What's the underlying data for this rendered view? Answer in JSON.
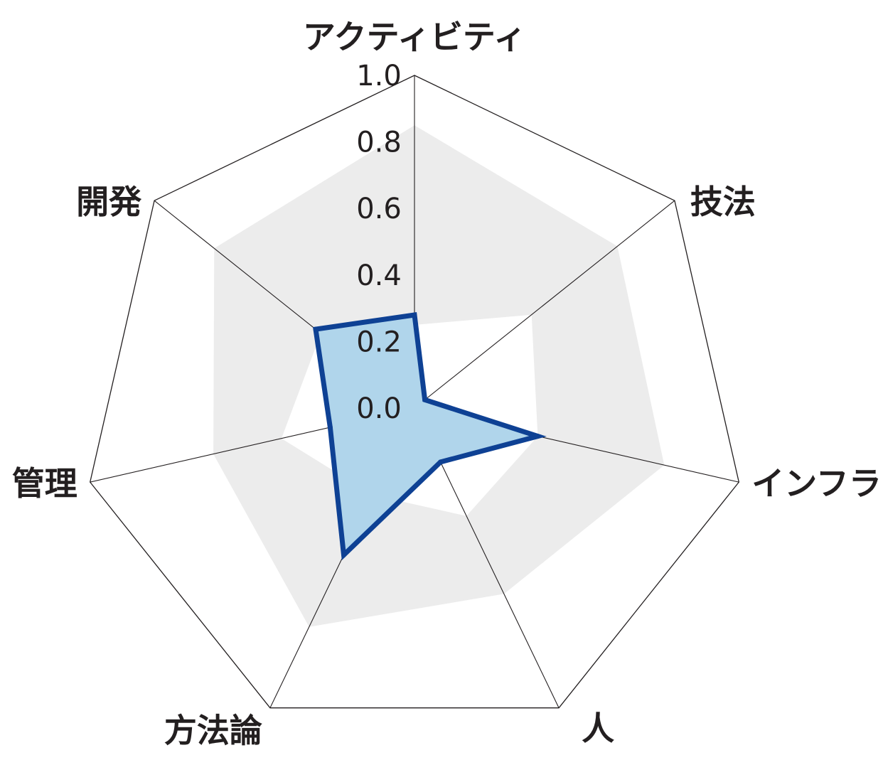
{
  "chart_data": {
    "type": "radar",
    "axes": [
      "アクティビティ",
      "技法",
      "インフラ",
      "人",
      "方法論",
      "管理",
      "開発"
    ],
    "r_ticks": [
      "0.0",
      "0.2",
      "0.4",
      "0.6",
      "0.8",
      "1.0"
    ],
    "rlim": [
      0,
      1.0
    ],
    "series": [
      {
        "values": [
          0.28,
          0.04,
          0.38,
          0.18,
          0.49,
          0.26,
          0.38
        ],
        "stroke": "#0e4194",
        "fill": "#b0d5eb"
      }
    ],
    "band": {
      "outer": [
        0.85,
        0.78,
        0.77,
        0.62,
        0.73,
        0.62,
        0.77
      ],
      "inner": [
        0.25,
        0.45,
        0.38,
        0.36,
        0.29,
        0.41,
        0.36
      ],
      "fill": "#ececec"
    },
    "grid_levels": [
      1.0
    ],
    "spoke_color": "#231f20",
    "label_color": "#231f20"
  }
}
